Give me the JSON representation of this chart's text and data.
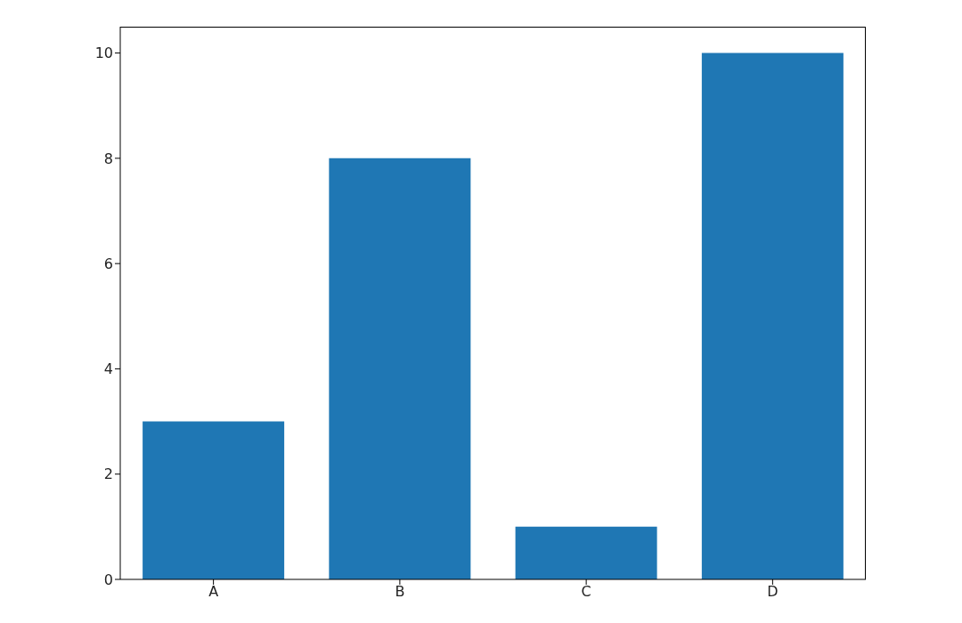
{
  "chart_data": {
    "type": "bar",
    "categories": [
      "A",
      "B",
      "C",
      "D"
    ],
    "values": [
      3,
      8,
      1,
      10
    ],
    "color": "#1f77b4",
    "ylim": [
      0,
      10.5
    ],
    "yticks": [
      0,
      2,
      4,
      6,
      8,
      10
    ],
    "grid": false
  }
}
